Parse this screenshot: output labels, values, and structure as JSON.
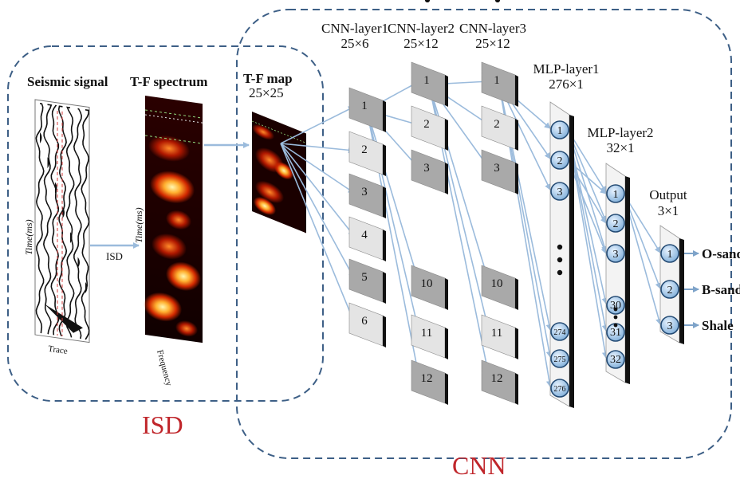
{
  "isd_region": {
    "label": "ISD",
    "seismic_title": "Seismic signal",
    "seismic_ylabel": "Time(ms)",
    "seismic_xlabel": "Trace",
    "arrow_label": "ISD",
    "tf_title": "T-F spectrum",
    "tf_ylabel": "Time(ms)",
    "tf_xlabel": "Frequency"
  },
  "tf_map": {
    "title": "T-F map",
    "size": "25×25"
  },
  "cnn_region": {
    "label": "CNN"
  },
  "cnn_layers": [
    {
      "name": "CNN-layer1",
      "size": "25×6",
      "maps": [
        "1",
        "2",
        "3",
        "4",
        "5",
        "6"
      ]
    },
    {
      "name": "CNN-layer2",
      "size": "25×12",
      "maps": [
        "1",
        "2",
        "3",
        "⋮",
        "10",
        "11",
        "12"
      ]
    },
    {
      "name": "CNN-layer3",
      "size": "25×12",
      "maps": [
        "1",
        "2",
        "3",
        "⋮",
        "10",
        "11",
        "12"
      ]
    }
  ],
  "mlp_layers": [
    {
      "name": "MLP-layer1",
      "size": "276×1",
      "nodes": [
        "1",
        "2",
        "3",
        "274",
        "275",
        "276"
      ]
    },
    {
      "name": "MLP-layer2",
      "size": "32×1",
      "nodes": [
        "1",
        "2",
        "3",
        "30",
        "31",
        "32"
      ]
    }
  ],
  "output_layer": {
    "name": "Output",
    "size": "3×1",
    "nodes": [
      "1",
      "2",
      "3"
    ]
  },
  "classes": [
    "O-sand",
    "B-sand",
    "Shale"
  ],
  "colors": {
    "dashed_border": "#3d5f86",
    "arrow": "#9bbbdc",
    "node_fill": "#8fb7dd",
    "node_stroke": "#234a73",
    "dark_map": "#a9a9a9",
    "light_map": "#e4e4e4",
    "region_label": "#c0262b"
  }
}
